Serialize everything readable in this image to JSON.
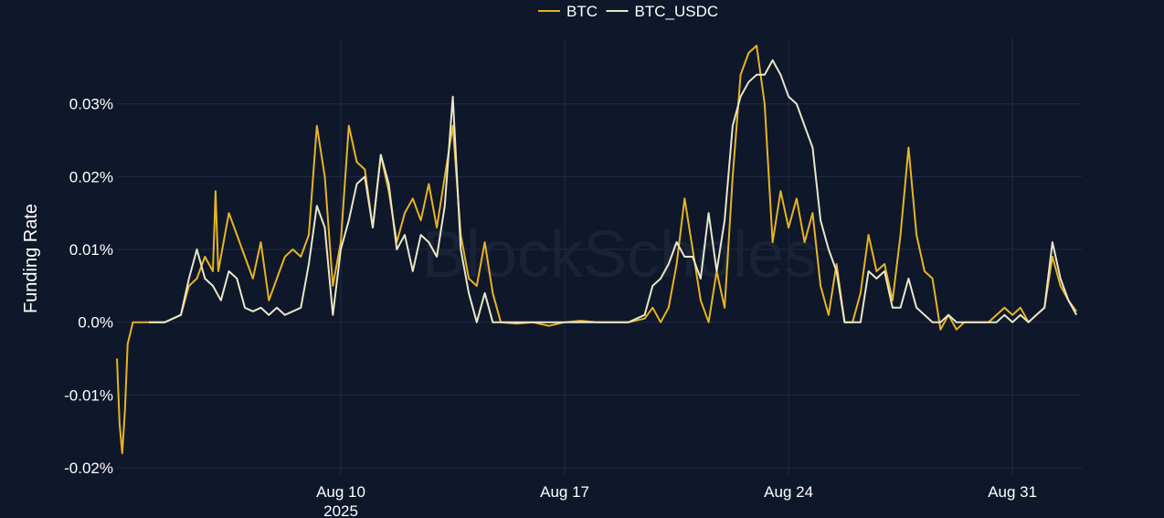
{
  "watermark": "BlockScholes",
  "chart_data": {
    "type": "line",
    "title": "",
    "xlabel": "",
    "ylabel": "Funding Rate",
    "x_ticks": [
      {
        "date": "2025-08-10",
        "label": "Aug 10",
        "sublabel": "2025"
      },
      {
        "date": "2025-08-17",
        "label": "Aug 17",
        "sublabel": ""
      },
      {
        "date": "2025-08-24",
        "label": "Aug 24",
        "sublabel": ""
      },
      {
        "date": "2025-08-31",
        "label": "Aug 31",
        "sublabel": ""
      }
    ],
    "y_ticks": [
      {
        "value": 0.03,
        "label": "0.03%"
      },
      {
        "value": 0.02,
        "label": "0.02%"
      },
      {
        "value": 0.01,
        "label": "0.01%"
      },
      {
        "value": 0.0,
        "label": "0.0%"
      },
      {
        "value": -0.01,
        "label": "-0.01%"
      },
      {
        "value": -0.02,
        "label": "-0.02%"
      }
    ],
    "xlim": [
      "2025-08-03 00:00",
      "2025-09-02 04:00"
    ],
    "ylim": [
      -0.021,
      0.039
    ],
    "grid": true,
    "legend_position": "top-center",
    "series": [
      {
        "name": "BTC",
        "color": "#e6b422",
        "points": [
          [
            "2025-08-03 00:00",
            -0.005
          ],
          [
            "2025-08-03 02:00",
            -0.014
          ],
          [
            "2025-08-03 04:00",
            -0.018
          ],
          [
            "2025-08-03 06:00",
            -0.012
          ],
          [
            "2025-08-03 08:00",
            -0.003
          ],
          [
            "2025-08-03 12:00",
            0.0
          ],
          [
            "2025-08-04 00:00",
            0.0
          ],
          [
            "2025-08-04 12:00",
            0.0
          ],
          [
            "2025-08-04 18:00",
            0.0005
          ],
          [
            "2025-08-05 00:00",
            0.001
          ],
          [
            "2025-08-05 06:00",
            0.005
          ],
          [
            "2025-08-05 12:00",
            0.006
          ],
          [
            "2025-08-05 18:00",
            0.009
          ],
          [
            "2025-08-06 00:00",
            0.007
          ],
          [
            "2025-08-06 02:00",
            0.018
          ],
          [
            "2025-08-06 04:00",
            0.007
          ],
          [
            "2025-08-06 08:00",
            0.011
          ],
          [
            "2025-08-06 12:00",
            0.015
          ],
          [
            "2025-08-06 18:00",
            0.012
          ],
          [
            "2025-08-07 00:00",
            0.009
          ],
          [
            "2025-08-07 06:00",
            0.006
          ],
          [
            "2025-08-07 12:00",
            0.011
          ],
          [
            "2025-08-07 18:00",
            0.003
          ],
          [
            "2025-08-08 00:00",
            0.006
          ],
          [
            "2025-08-08 06:00",
            0.009
          ],
          [
            "2025-08-08 12:00",
            0.01
          ],
          [
            "2025-08-08 18:00",
            0.009
          ],
          [
            "2025-08-09 00:00",
            0.012
          ],
          [
            "2025-08-09 06:00",
            0.027
          ],
          [
            "2025-08-09 12:00",
            0.02
          ],
          [
            "2025-08-09 18:00",
            0.005
          ],
          [
            "2025-08-10 00:00",
            0.011
          ],
          [
            "2025-08-10 06:00",
            0.027
          ],
          [
            "2025-08-10 12:00",
            0.022
          ],
          [
            "2025-08-10 18:00",
            0.021
          ],
          [
            "2025-08-11 00:00",
            0.013
          ],
          [
            "2025-08-11 06:00",
            0.023
          ],
          [
            "2025-08-11 12:00",
            0.018
          ],
          [
            "2025-08-11 18:00",
            0.011
          ],
          [
            "2025-08-12 00:00",
            0.015
          ],
          [
            "2025-08-12 06:00",
            0.017
          ],
          [
            "2025-08-12 12:00",
            0.014
          ],
          [
            "2025-08-12 18:00",
            0.019
          ],
          [
            "2025-08-13 00:00",
            0.013
          ],
          [
            "2025-08-13 06:00",
            0.02
          ],
          [
            "2025-08-13 12:00",
            0.027
          ],
          [
            "2025-08-13 18:00",
            0.012
          ],
          [
            "2025-08-14 00:00",
            0.006
          ],
          [
            "2025-08-14 06:00",
            0.005
          ],
          [
            "2025-08-14 12:00",
            0.011
          ],
          [
            "2025-08-14 18:00",
            0.004
          ],
          [
            "2025-08-15 00:00",
            0.0
          ],
          [
            "2025-08-15 12:00",
            -0.0002
          ],
          [
            "2025-08-16 00:00",
            0.0
          ],
          [
            "2025-08-16 12:00",
            -0.0005
          ],
          [
            "2025-08-17 00:00",
            0.0
          ],
          [
            "2025-08-17 12:00",
            0.0002
          ],
          [
            "2025-08-18 00:00",
            0.0
          ],
          [
            "2025-08-18 12:00",
            0.0
          ],
          [
            "2025-08-19 00:00",
            0.0
          ],
          [
            "2025-08-19 12:00",
            0.0005
          ],
          [
            "2025-08-19 18:00",
            0.002
          ],
          [
            "2025-08-20 00:00",
            0.0
          ],
          [
            "2025-08-20 06:00",
            0.002
          ],
          [
            "2025-08-20 12:00",
            0.008
          ],
          [
            "2025-08-20 18:00",
            0.017
          ],
          [
            "2025-08-21 00:00",
            0.01
          ],
          [
            "2025-08-21 06:00",
            0.003
          ],
          [
            "2025-08-21 12:00",
            0.0
          ],
          [
            "2025-08-21 18:00",
            0.007
          ],
          [
            "2025-08-22 00:00",
            0.002
          ],
          [
            "2025-08-22 06:00",
            0.02
          ],
          [
            "2025-08-22 12:00",
            0.034
          ],
          [
            "2025-08-22 18:00",
            0.037
          ],
          [
            "2025-08-23 00:00",
            0.038
          ],
          [
            "2025-08-23 06:00",
            0.03
          ],
          [
            "2025-08-23 12:00",
            0.011
          ],
          [
            "2025-08-23 18:00",
            0.018
          ],
          [
            "2025-08-24 00:00",
            0.013
          ],
          [
            "2025-08-24 06:00",
            0.017
          ],
          [
            "2025-08-24 12:00",
            0.011
          ],
          [
            "2025-08-24 18:00",
            0.015
          ],
          [
            "2025-08-25 00:00",
            0.005
          ],
          [
            "2025-08-25 06:00",
            0.001
          ],
          [
            "2025-08-25 12:00",
            0.008
          ],
          [
            "2025-08-25 18:00",
            0.0
          ],
          [
            "2025-08-26 00:00",
            0.0
          ],
          [
            "2025-08-26 06:00",
            0.004
          ],
          [
            "2025-08-26 12:00",
            0.012
          ],
          [
            "2025-08-26 18:00",
            0.007
          ],
          [
            "2025-08-27 00:00",
            0.008
          ],
          [
            "2025-08-27 06:00",
            0.003
          ],
          [
            "2025-08-27 12:00",
            0.012
          ],
          [
            "2025-08-27 18:00",
            0.024
          ],
          [
            "2025-08-28 00:00",
            0.012
          ],
          [
            "2025-08-28 06:00",
            0.007
          ],
          [
            "2025-08-28 12:00",
            0.006
          ],
          [
            "2025-08-28 18:00",
            -0.001
          ],
          [
            "2025-08-29 00:00",
            0.001
          ],
          [
            "2025-08-29 06:00",
            -0.001
          ],
          [
            "2025-08-29 12:00",
            0.0
          ],
          [
            "2025-08-29 18:00",
            0.0
          ],
          [
            "2025-08-30 00:00",
            0.0
          ],
          [
            "2025-08-30 06:00",
            0.0
          ],
          [
            "2025-08-30 12:00",
            0.001
          ],
          [
            "2025-08-30 18:00",
            0.002
          ],
          [
            "2025-08-31 00:00",
            0.001
          ],
          [
            "2025-08-31 06:00",
            0.002
          ],
          [
            "2025-08-31 12:00",
            0.0
          ],
          [
            "2025-08-31 18:00",
            0.001
          ],
          [
            "2025-09-01 00:00",
            0.002
          ],
          [
            "2025-09-01 06:00",
            0.009
          ],
          [
            "2025-09-01 12:00",
            0.005
          ],
          [
            "2025-09-01 18:00",
            0.003
          ],
          [
            "2025-09-02 00:00",
            0.0015
          ]
        ]
      },
      {
        "name": "BTC_USDC",
        "color": "#e8e6c8",
        "points": [
          [
            "2025-08-04 00:00",
            0.0
          ],
          [
            "2025-08-04 12:00",
            0.0
          ],
          [
            "2025-08-04 18:00",
            0.0005
          ],
          [
            "2025-08-05 00:00",
            0.001
          ],
          [
            "2025-08-05 06:00",
            0.006
          ],
          [
            "2025-08-05 12:00",
            0.01
          ],
          [
            "2025-08-05 18:00",
            0.006
          ],
          [
            "2025-08-06 00:00",
            0.005
          ],
          [
            "2025-08-06 06:00",
            0.003
          ],
          [
            "2025-08-06 12:00",
            0.007
          ],
          [
            "2025-08-06 18:00",
            0.006
          ],
          [
            "2025-08-07 00:00",
            0.002
          ],
          [
            "2025-08-07 06:00",
            0.0015
          ],
          [
            "2025-08-07 12:00",
            0.002
          ],
          [
            "2025-08-07 18:00",
            0.001
          ],
          [
            "2025-08-08 00:00",
            0.002
          ],
          [
            "2025-08-08 06:00",
            0.001
          ],
          [
            "2025-08-08 12:00",
            0.0015
          ],
          [
            "2025-08-08 18:00",
            0.002
          ],
          [
            "2025-08-09 00:00",
            0.008
          ],
          [
            "2025-08-09 06:00",
            0.016
          ],
          [
            "2025-08-09 12:00",
            0.013
          ],
          [
            "2025-08-09 18:00",
            0.001
          ],
          [
            "2025-08-10 00:00",
            0.01
          ],
          [
            "2025-08-10 06:00",
            0.014
          ],
          [
            "2025-08-10 12:00",
            0.019
          ],
          [
            "2025-08-10 18:00",
            0.02
          ],
          [
            "2025-08-11 00:00",
            0.013
          ],
          [
            "2025-08-11 06:00",
            0.023
          ],
          [
            "2025-08-11 12:00",
            0.019
          ],
          [
            "2025-08-11 18:00",
            0.01
          ],
          [
            "2025-08-12 00:00",
            0.012
          ],
          [
            "2025-08-12 06:00",
            0.007
          ],
          [
            "2025-08-12 12:00",
            0.012
          ],
          [
            "2025-08-12 18:00",
            0.011
          ],
          [
            "2025-08-13 00:00",
            0.009
          ],
          [
            "2025-08-13 06:00",
            0.016
          ],
          [
            "2025-08-13 12:00",
            0.031
          ],
          [
            "2025-08-13 18:00",
            0.01
          ],
          [
            "2025-08-14 00:00",
            0.004
          ],
          [
            "2025-08-14 06:00",
            0.0
          ],
          [
            "2025-08-14 12:00",
            0.004
          ],
          [
            "2025-08-14 18:00",
            0.0
          ],
          [
            "2025-08-15 00:00",
            0.0
          ],
          [
            "2025-08-15 12:00",
            0.0
          ],
          [
            "2025-08-16 00:00",
            0.0
          ],
          [
            "2025-08-16 12:00",
            0.0
          ],
          [
            "2025-08-17 00:00",
            0.0
          ],
          [
            "2025-08-17 12:00",
            0.0
          ],
          [
            "2025-08-18 00:00",
            0.0
          ],
          [
            "2025-08-18 12:00",
            0.0
          ],
          [
            "2025-08-19 00:00",
            0.0
          ],
          [
            "2025-08-19 12:00",
            0.001
          ],
          [
            "2025-08-19 18:00",
            0.005
          ],
          [
            "2025-08-20 00:00",
            0.006
          ],
          [
            "2025-08-20 06:00",
            0.008
          ],
          [
            "2025-08-20 12:00",
            0.011
          ],
          [
            "2025-08-20 18:00",
            0.009
          ],
          [
            "2025-08-21 00:00",
            0.009
          ],
          [
            "2025-08-21 06:00",
            0.006
          ],
          [
            "2025-08-21 12:00",
            0.015
          ],
          [
            "2025-08-21 18:00",
            0.007
          ],
          [
            "2025-08-22 00:00",
            0.014
          ],
          [
            "2025-08-22 06:00",
            0.027
          ],
          [
            "2025-08-22 12:00",
            0.031
          ],
          [
            "2025-08-22 18:00",
            0.033
          ],
          [
            "2025-08-23 00:00",
            0.034
          ],
          [
            "2025-08-23 06:00",
            0.034
          ],
          [
            "2025-08-23 12:00",
            0.036
          ],
          [
            "2025-08-23 18:00",
            0.034
          ],
          [
            "2025-08-24 00:00",
            0.031
          ],
          [
            "2025-08-24 06:00",
            0.03
          ],
          [
            "2025-08-24 12:00",
            0.027
          ],
          [
            "2025-08-24 18:00",
            0.024
          ],
          [
            "2025-08-25 00:00",
            0.014
          ],
          [
            "2025-08-25 06:00",
            0.01
          ],
          [
            "2025-08-25 12:00",
            0.007
          ],
          [
            "2025-08-25 18:00",
            0.0
          ],
          [
            "2025-08-26 00:00",
            0.0
          ],
          [
            "2025-08-26 06:00",
            0.0
          ],
          [
            "2025-08-26 12:00",
            0.007
          ],
          [
            "2025-08-26 18:00",
            0.006
          ],
          [
            "2025-08-27 00:00",
            0.007
          ],
          [
            "2025-08-27 06:00",
            0.002
          ],
          [
            "2025-08-27 12:00",
            0.002
          ],
          [
            "2025-08-27 18:00",
            0.006
          ],
          [
            "2025-08-28 00:00",
            0.002
          ],
          [
            "2025-08-28 06:00",
            0.001
          ],
          [
            "2025-08-28 12:00",
            0.0
          ],
          [
            "2025-08-28 18:00",
            0.0
          ],
          [
            "2025-08-29 00:00",
            0.001
          ],
          [
            "2025-08-29 06:00",
            0.0
          ],
          [
            "2025-08-29 12:00",
            0.0
          ],
          [
            "2025-08-29 18:00",
            0.0
          ],
          [
            "2025-08-30 00:00",
            0.0
          ],
          [
            "2025-08-30 06:00",
            0.0
          ],
          [
            "2025-08-30 12:00",
            0.0
          ],
          [
            "2025-08-30 18:00",
            0.001
          ],
          [
            "2025-08-31 00:00",
            0.0
          ],
          [
            "2025-08-31 06:00",
            0.001
          ],
          [
            "2025-08-31 12:00",
            0.0
          ],
          [
            "2025-08-31 18:00",
            0.001
          ],
          [
            "2025-09-01 00:00",
            0.002
          ],
          [
            "2025-09-01 06:00",
            0.011
          ],
          [
            "2025-09-01 12:00",
            0.006
          ],
          [
            "2025-09-01 18:00",
            0.003
          ],
          [
            "2025-09-02 00:00",
            0.001
          ]
        ]
      }
    ]
  }
}
